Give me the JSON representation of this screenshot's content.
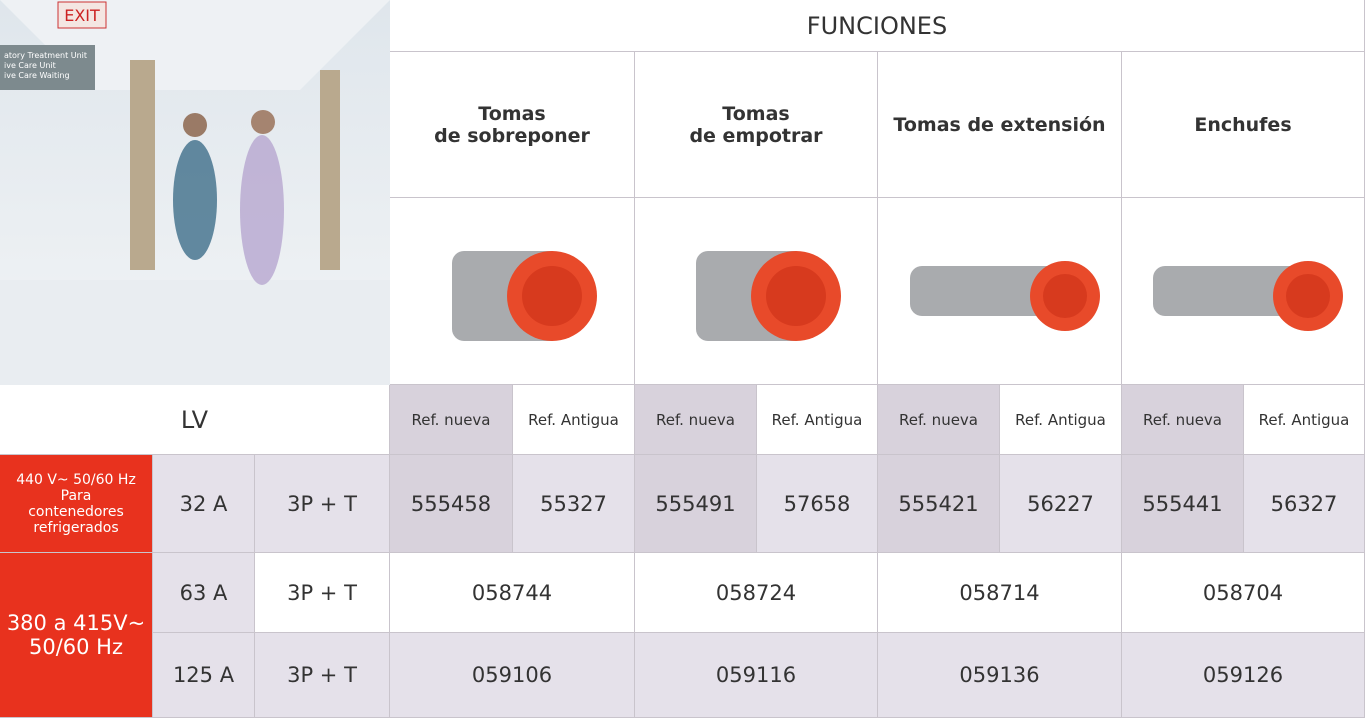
{
  "photo_texts": [
    "EXIT",
    "atory Treatment Unit",
    "ive Care Unit",
    "ive Care Waiting"
  ],
  "header": {
    "title": "FUNCIONES"
  },
  "columns": [
    {
      "label": [
        "Tomas",
        "de sobreponer"
      ],
      "refs": [
        "Ref. nueva",
        "Ref. Antigua"
      ]
    },
    {
      "label": [
        "Tomas",
        "de empotrar"
      ],
      "refs": [
        "Ref. nueva",
        "Ref. Antigua"
      ]
    },
    {
      "label": [
        "Tomas de extensión"
      ],
      "refs": [
        "Ref. nueva",
        "Ref. Antigua"
      ]
    },
    {
      "label": [
        "Enchufes"
      ],
      "refs": [
        "Ref. nueva",
        "Ref. Antigua"
      ]
    }
  ],
  "table": {
    "lv_label": "LV",
    "rows": [
      {
        "voltage": [
          "440 V~ 50/60 Hz",
          "Para",
          "contenedores",
          "refrigerados"
        ],
        "current": "32 A",
        "poles": "3P + T",
        "values": [
          "555458",
          "55327",
          "555491",
          "57658",
          "555421",
          "56227",
          "555441",
          "56327"
        ]
      },
      {
        "voltage": [
          "380 a 415V~",
          "50/60 Hz"
        ],
        "current": "63 A",
        "poles": "3P + T",
        "values": [
          "058744",
          "058724",
          "058714",
          "058704"
        ]
      },
      {
        "current": "125 A",
        "poles": "3P + T",
        "values": [
          "059106",
          "059116",
          "059136",
          "059126"
        ]
      }
    ]
  }
}
